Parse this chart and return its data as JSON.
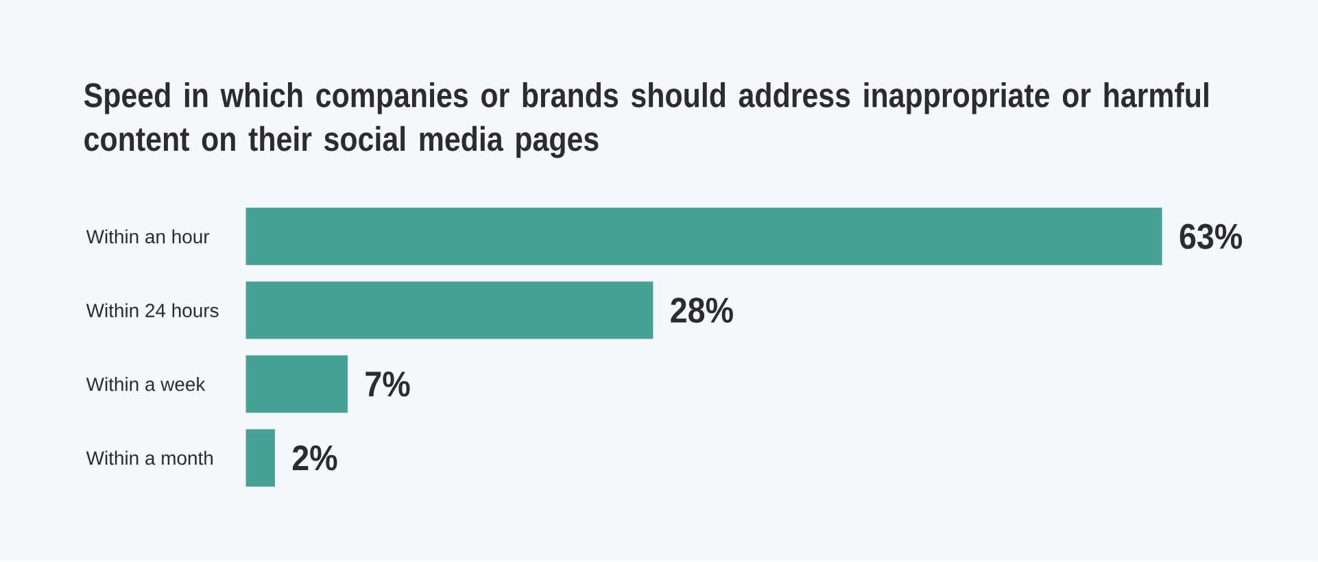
{
  "chart_data": {
    "type": "bar",
    "orientation": "horizontal",
    "title": "Speed in which companies or brands should address inappropriate or harmful content on their social media pages",
    "categories": [
      "Within an hour",
      "Within 24 hours",
      "Within a week",
      "Within a month"
    ],
    "values": [
      63,
      28,
      7,
      2
    ],
    "color": "#47a197",
    "value_labels": [
      "63%",
      "28%",
      "7%",
      "2%"
    ]
  }
}
